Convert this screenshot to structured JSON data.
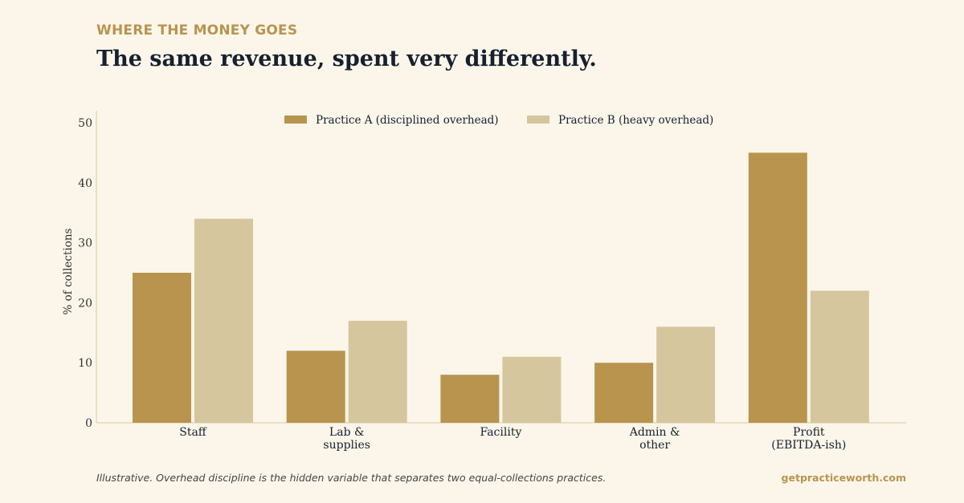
{
  "header": {
    "eyebrow": "WHERE THE MONEY GOES",
    "title": "The same revenue, spent very differently."
  },
  "chart_data": {
    "type": "bar",
    "categories": [
      [
        "Staff"
      ],
      [
        "Lab &",
        "supplies"
      ],
      [
        "Facility"
      ],
      [
        "Admin &",
        "other"
      ],
      [
        "Profit",
        "(EBITDA-ish)"
      ]
    ],
    "series": [
      {
        "name": "Practice A (disciplined overhead)",
        "color": "#b8944e",
        "values": [
          25,
          12,
          8,
          10,
          45
        ]
      },
      {
        "name": "Practice B (heavy overhead)",
        "color": "#d6c69e",
        "values": [
          34,
          17,
          11,
          16,
          22
        ]
      }
    ],
    "ylabel": "% of collections",
    "ylim": [
      0,
      52
    ],
    "yticks": [
      0,
      10,
      20,
      30,
      40,
      50
    ],
    "grid": false,
    "legend": "top-center",
    "axis_color": "#d9c9a3"
  },
  "footer": {
    "caption": "Illustrative. Overhead discipline is the hidden variable that separates two equal-collections practices.",
    "site": "getpracticeworth.com"
  }
}
